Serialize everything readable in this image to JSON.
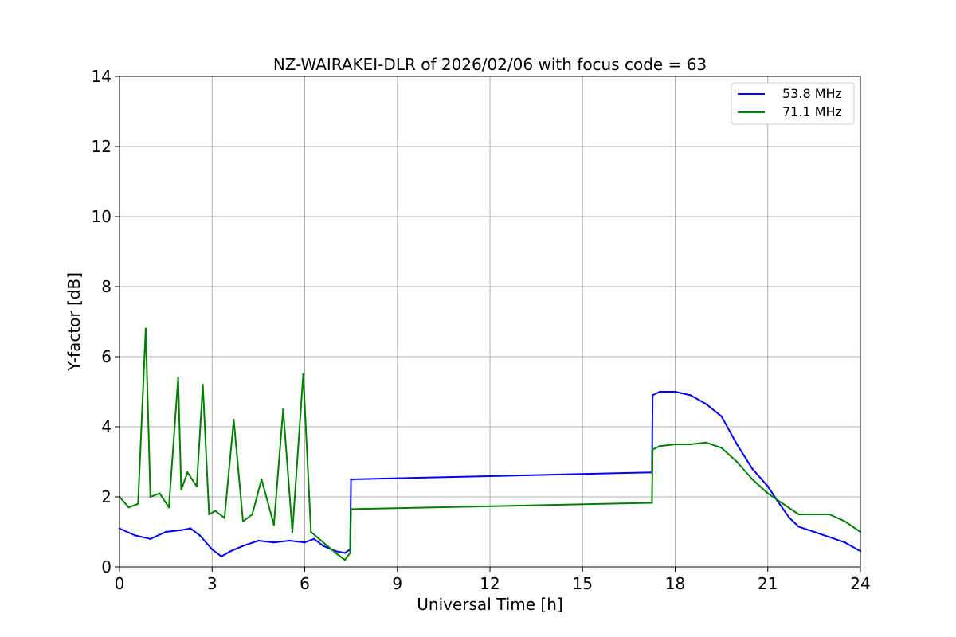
{
  "chart_data": {
    "type": "line",
    "title": "NZ-WAIRAKEI-DLR of 2026/02/06 with focus code = 63",
    "xlabel": "Universal Time [h]",
    "ylabel": "Y-factor [dB]",
    "xlim": [
      0,
      24
    ],
    "ylim": [
      0,
      14
    ],
    "xticks": [
      0,
      3,
      6,
      9,
      12,
      15,
      18,
      21,
      24
    ],
    "yticks": [
      0,
      2,
      4,
      6,
      8,
      10,
      12,
      14
    ],
    "grid": true,
    "legend_position": "upper-right",
    "series": [
      {
        "name": "53.8 MHz",
        "color": "#0000ff",
        "x": [
          0,
          0.5,
          1,
          1.5,
          2,
          2.3,
          2.6,
          3,
          3.3,
          3.6,
          4,
          4.5,
          5,
          5.5,
          6,
          6.3,
          6.6,
          7,
          7.3,
          7.47,
          7.5,
          17.25,
          17.27,
          17.5,
          18,
          18.5,
          19,
          19.5,
          20,
          20.5,
          21,
          21.3,
          21.7,
          22,
          22.5,
          23,
          23.5,
          24
        ],
        "y": [
          1.1,
          0.9,
          0.8,
          1.0,
          1.05,
          1.1,
          0.9,
          0.5,
          0.3,
          0.45,
          0.6,
          0.75,
          0.7,
          0.75,
          0.7,
          0.8,
          0.6,
          0.45,
          0.4,
          0.5,
          2.5,
          2.7,
          4.9,
          5.0,
          5.0,
          4.9,
          4.65,
          4.3,
          3.5,
          2.8,
          2.3,
          1.9,
          1.4,
          1.15,
          1.0,
          0.85,
          0.7,
          0.45
        ]
      },
      {
        "name": "71.1 MHz",
        "color": "#008000",
        "x": [
          0,
          0.3,
          0.6,
          0.85,
          1.0,
          1.3,
          1.6,
          1.9,
          2.0,
          2.2,
          2.5,
          2.7,
          2.9,
          3.1,
          3.4,
          3.7,
          4.0,
          4.3,
          4.6,
          5.0,
          5.3,
          5.6,
          5.95,
          6.2,
          6.6,
          7.0,
          7.3,
          7.47,
          7.5,
          17.25,
          17.27,
          17.5,
          18,
          18.5,
          19,
          19.5,
          20,
          20.5,
          21,
          21.5,
          22,
          22.5,
          23,
          23.5,
          24
        ],
        "y": [
          2.0,
          1.7,
          1.8,
          6.8,
          2.0,
          2.1,
          1.7,
          5.4,
          2.2,
          2.7,
          2.3,
          5.2,
          1.5,
          1.6,
          1.4,
          4.2,
          1.3,
          1.5,
          2.5,
          1.2,
          4.5,
          1.0,
          5.5,
          1.0,
          0.7,
          0.4,
          0.2,
          0.4,
          1.65,
          1.83,
          3.35,
          3.45,
          3.5,
          3.5,
          3.55,
          3.4,
          3.0,
          2.5,
          2.1,
          1.8,
          1.5,
          1.5,
          1.5,
          1.3,
          1.0
        ]
      }
    ]
  }
}
